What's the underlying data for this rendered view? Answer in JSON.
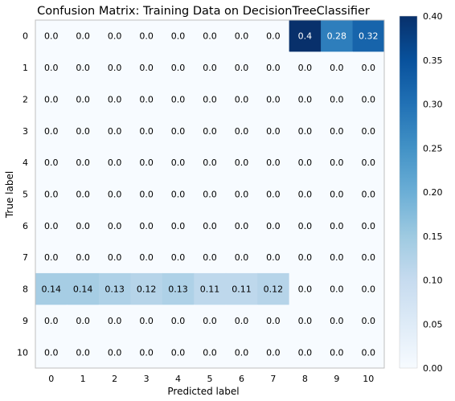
{
  "chart_data": {
    "type": "heatmap",
    "title": "Confusion Matrix: Training Data on DecisionTreeClassifier",
    "xlabel": "Predicted label",
    "ylabel": "True label",
    "x_categories": [
      "0",
      "1",
      "2",
      "3",
      "4",
      "5",
      "6",
      "7",
      "8",
      "9",
      "10"
    ],
    "y_categories": [
      "0",
      "1",
      "2",
      "3",
      "4",
      "5",
      "6",
      "7",
      "8",
      "9",
      "10"
    ],
    "values": [
      [
        0.0,
        0.0,
        0.0,
        0.0,
        0.0,
        0.0,
        0.0,
        0.0,
        0.4,
        0.28,
        0.32
      ],
      [
        0.0,
        0.0,
        0.0,
        0.0,
        0.0,
        0.0,
        0.0,
        0.0,
        0.0,
        0.0,
        0.0
      ],
      [
        0.0,
        0.0,
        0.0,
        0.0,
        0.0,
        0.0,
        0.0,
        0.0,
        0.0,
        0.0,
        0.0
      ],
      [
        0.0,
        0.0,
        0.0,
        0.0,
        0.0,
        0.0,
        0.0,
        0.0,
        0.0,
        0.0,
        0.0
      ],
      [
        0.0,
        0.0,
        0.0,
        0.0,
        0.0,
        0.0,
        0.0,
        0.0,
        0.0,
        0.0,
        0.0
      ],
      [
        0.0,
        0.0,
        0.0,
        0.0,
        0.0,
        0.0,
        0.0,
        0.0,
        0.0,
        0.0,
        0.0
      ],
      [
        0.0,
        0.0,
        0.0,
        0.0,
        0.0,
        0.0,
        0.0,
        0.0,
        0.0,
        0.0,
        0.0
      ],
      [
        0.0,
        0.0,
        0.0,
        0.0,
        0.0,
        0.0,
        0.0,
        0.0,
        0.0,
        0.0,
        0.0
      ],
      [
        0.14,
        0.14,
        0.13,
        0.12,
        0.13,
        0.11,
        0.11,
        0.12,
        0.0,
        0.0,
        0.0
      ],
      [
        0.0,
        0.0,
        0.0,
        0.0,
        0.0,
        0.0,
        0.0,
        0.0,
        0.0,
        0.0,
        0.0
      ],
      [
        0.0,
        0.0,
        0.0,
        0.0,
        0.0,
        0.0,
        0.0,
        0.0,
        0.0,
        0.0,
        0.0
      ]
    ],
    "cell_labels": [
      [
        "0.0",
        "0.0",
        "0.0",
        "0.0",
        "0.0",
        "0.0",
        "0.0",
        "0.0",
        "0.4",
        "0.28",
        "0.32"
      ],
      [
        "0.0",
        "0.0",
        "0.0",
        "0.0",
        "0.0",
        "0.0",
        "0.0",
        "0.0",
        "0.0",
        "0.0",
        "0.0"
      ],
      [
        "0.0",
        "0.0",
        "0.0",
        "0.0",
        "0.0",
        "0.0",
        "0.0",
        "0.0",
        "0.0",
        "0.0",
        "0.0"
      ],
      [
        "0.0",
        "0.0",
        "0.0",
        "0.0",
        "0.0",
        "0.0",
        "0.0",
        "0.0",
        "0.0",
        "0.0",
        "0.0"
      ],
      [
        "0.0",
        "0.0",
        "0.0",
        "0.0",
        "0.0",
        "0.0",
        "0.0",
        "0.0",
        "0.0",
        "0.0",
        "0.0"
      ],
      [
        "0.0",
        "0.0",
        "0.0",
        "0.0",
        "0.0",
        "0.0",
        "0.0",
        "0.0",
        "0.0",
        "0.0",
        "0.0"
      ],
      [
        "0.0",
        "0.0",
        "0.0",
        "0.0",
        "0.0",
        "0.0",
        "0.0",
        "0.0",
        "0.0",
        "0.0",
        "0.0"
      ],
      [
        "0.0",
        "0.0",
        "0.0",
        "0.0",
        "0.0",
        "0.0",
        "0.0",
        "0.0",
        "0.0",
        "0.0",
        "0.0"
      ],
      [
        "0.14",
        "0.14",
        "0.13",
        "0.12",
        "0.13",
        "0.11",
        "0.11",
        "0.12",
        "0.0",
        "0.0",
        "0.0"
      ],
      [
        "0.0",
        "0.0",
        "0.0",
        "0.0",
        "0.0",
        "0.0",
        "0.0",
        "0.0",
        "0.0",
        "0.0",
        "0.0"
      ],
      [
        "0.0",
        "0.0",
        "0.0",
        "0.0",
        "0.0",
        "0.0",
        "0.0",
        "0.0",
        "0.0",
        "0.0",
        "0.0"
      ]
    ],
    "colorbar": {
      "range": [
        0.0,
        0.4
      ],
      "ticks": [
        "0.00",
        "0.05",
        "0.10",
        "0.15",
        "0.20",
        "0.25",
        "0.30",
        "0.35",
        "0.40"
      ],
      "colormap": "Blues"
    },
    "grid": false
  }
}
